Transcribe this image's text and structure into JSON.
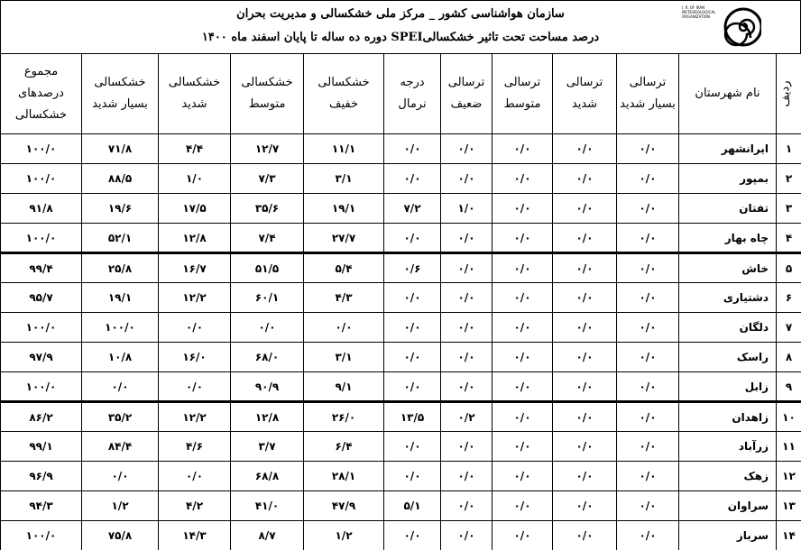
{
  "header": {
    "title": "سازمان هواشناسی کشور _ مرکز ملی خشکسالی و مدیریت بحران",
    "subtitle": "درصد مساحت تحت تاثیر خشکسالیSPEI دوره ده ساله تا پایان اسفند ماه ۱۴۰۰"
  },
  "logo": {
    "text": "I. R. OF IRAN METEOROLOGICAL ORGANIZATION"
  },
  "table": {
    "columns": [
      "ردیف",
      "نام شهرستان",
      "ترسالی بسیار شدید",
      "ترسالی شدید",
      "ترسالی متوسط",
      "ترسالی ضعیف",
      "درجه نرمال",
      "خشکسالی خفیف",
      "خشکسالی متوسط",
      "خشکسالی شدید",
      "خشکسالی بسیار شدید",
      "مجموع درصدهای خشکسالی"
    ],
    "rows": [
      [
        "۱",
        "ایرانشهر",
        "۰/۰",
        "۰/۰",
        "۰/۰",
        "۰/۰",
        "۰/۰",
        "۱۱/۱",
        "۱۲/۷",
        "۴/۴",
        "۷۱/۸",
        "۱۰۰/۰"
      ],
      [
        "۲",
        "بمپور",
        "۰/۰",
        "۰/۰",
        "۰/۰",
        "۰/۰",
        "۰/۰",
        "۳/۱",
        "۷/۳",
        "۱/۰",
        "۸۸/۵",
        "۱۰۰/۰"
      ],
      [
        "۳",
        "تفتان",
        "۰/۰",
        "۰/۰",
        "۰/۰",
        "۱/۰",
        "۷/۲",
        "۱۹/۱",
        "۳۵/۶",
        "۱۷/۵",
        "۱۹/۶",
        "۹۱/۸"
      ],
      [
        "۴",
        "چاه بهار",
        "۰/۰",
        "۰/۰",
        "۰/۰",
        "۰/۰",
        "۰/۰",
        "۲۷/۷",
        "۷/۴",
        "۱۲/۸",
        "۵۲/۱",
        "۱۰۰/۰"
      ],
      [
        "۵",
        "خاش",
        "۰/۰",
        "۰/۰",
        "۰/۰",
        "۰/۰",
        "۰/۶",
        "۵/۴",
        "۵۱/۵",
        "۱۶/۷",
        "۲۵/۸",
        "۹۹/۴"
      ],
      [
        "۶",
        "دشتیاری",
        "۰/۰",
        "۰/۰",
        "۰/۰",
        "۰/۰",
        "۰/۰",
        "۴/۳",
        "۶۰/۱",
        "۱۲/۲",
        "۱۹/۱",
        "۹۵/۷"
      ],
      [
        "۷",
        "دلگان",
        "۰/۰",
        "۰/۰",
        "۰/۰",
        "۰/۰",
        "۰/۰",
        "۰/۰",
        "۰/۰",
        "۰/۰",
        "۱۰۰/۰",
        "۱۰۰/۰"
      ],
      [
        "۸",
        "راسک",
        "۰/۰",
        "۰/۰",
        "۰/۰",
        "۰/۰",
        "۰/۰",
        "۳/۱",
        "۶۸/۰",
        "۱۶/۰",
        "۱۰/۸",
        "۹۷/۹"
      ],
      [
        "۹",
        "زابل",
        "۰/۰",
        "۰/۰",
        "۰/۰",
        "۰/۰",
        "۰/۰",
        "۹/۱",
        "۹۰/۹",
        "۰/۰",
        "۰/۰",
        "۱۰۰/۰"
      ],
      [
        "۱۰",
        "زاهدان",
        "۰/۰",
        "۰/۰",
        "۰/۰",
        "۰/۲",
        "۱۳/۵",
        "۲۶/۰",
        "۱۲/۸",
        "۱۲/۲",
        "۳۵/۲",
        "۸۶/۲"
      ],
      [
        "۱۱",
        "زرآباد",
        "۰/۰",
        "۰/۰",
        "۰/۰",
        "۰/۰",
        "۰/۰",
        "۶/۴",
        "۳/۷",
        "۴/۶",
        "۸۴/۴",
        "۹۹/۱"
      ],
      [
        "۱۲",
        "زهک",
        "۰/۰",
        "۰/۰",
        "۰/۰",
        "۰/۰",
        "۰/۰",
        "۲۸/۱",
        "۶۸/۸",
        "۰/۰",
        "۰/۰",
        "۹۶/۹"
      ],
      [
        "۱۳",
        "سراوان",
        "۰/۰",
        "۰/۰",
        "۰/۰",
        "۰/۰",
        "۵/۱",
        "۴۷/۹",
        "۴۱/۰",
        "۴/۲",
        "۱/۲",
        "۹۴/۳"
      ],
      [
        "۱۴",
        "سرباز",
        "۰/۰",
        "۰/۰",
        "۰/۰",
        "۰/۰",
        "۰/۰",
        "۱/۲",
        "۸/۷",
        "۱۴/۳",
        "۷۵/۸",
        "۱۰۰/۰"
      ]
    ]
  }
}
